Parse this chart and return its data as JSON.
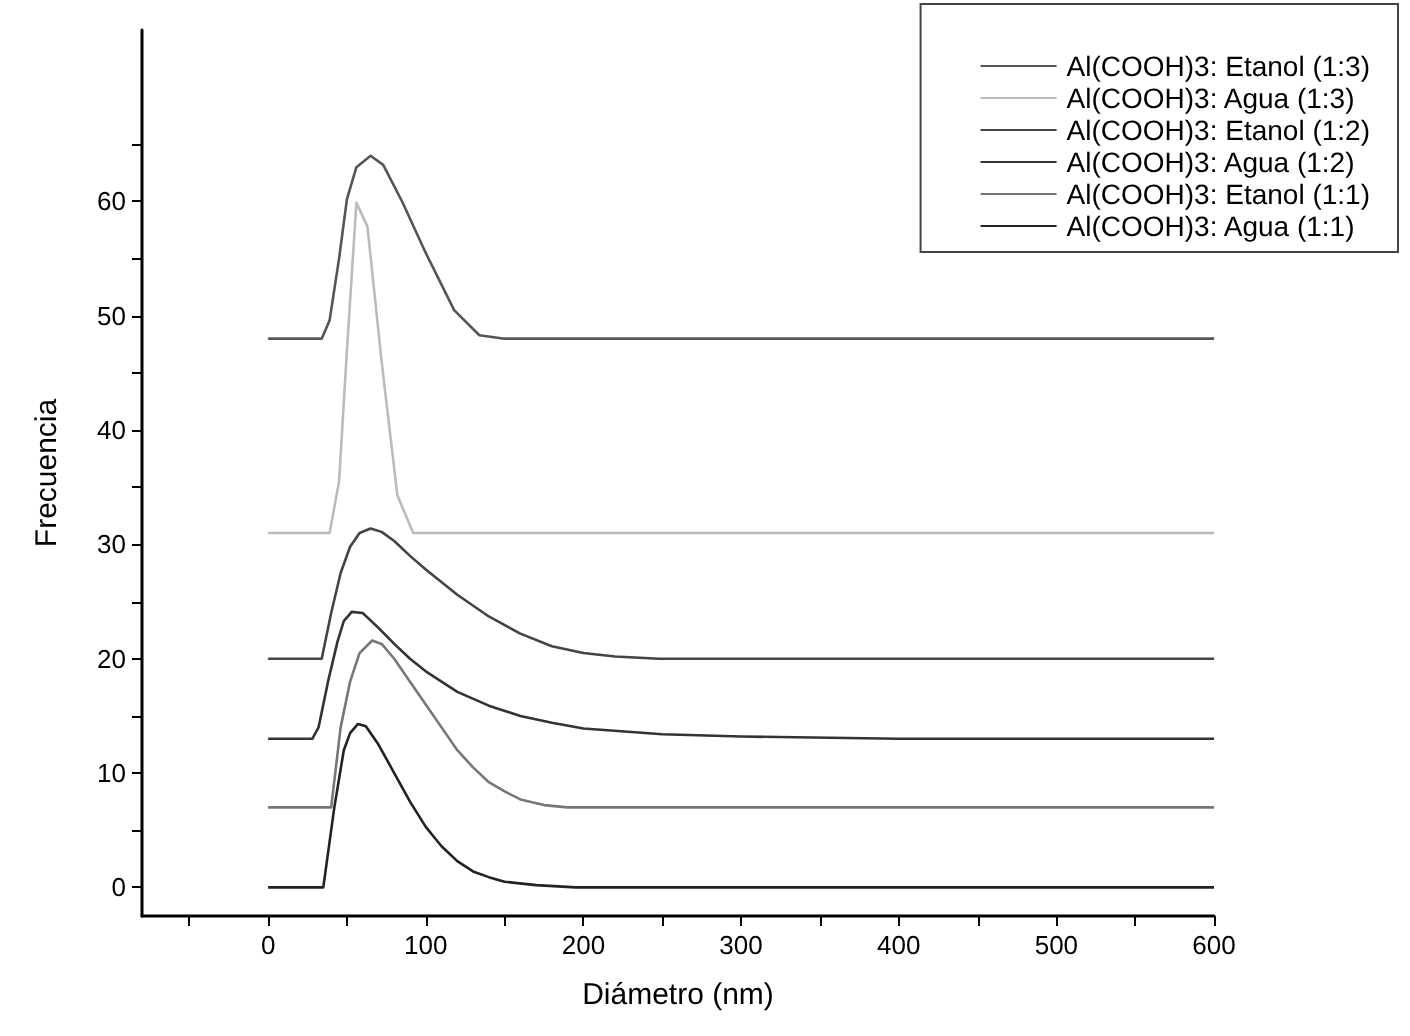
{
  "chart_data": {
    "type": "line",
    "xlabel": "Diámetro (nm)",
    "ylabel": "Frecuencia",
    "xlim": [
      -80,
      600
    ],
    "ylim": [
      -2.5,
      75
    ],
    "xticks": [
      {
        "value": -50,
        "label": null
      },
      0,
      {
        "value": 50,
        "label": null
      },
      100,
      {
        "value": 150,
        "label": null
      },
      200,
      {
        "value": 250,
        "label": null
      },
      300,
      {
        "value": 350,
        "label": null
      },
      400,
      {
        "value": 450,
        "label": null
      },
      500,
      {
        "value": 550,
        "label": null
      },
      600
    ],
    "yticks": [
      0,
      {
        "value": 5,
        "label": null
      },
      10,
      {
        "value": 15,
        "label": null
      },
      20,
      {
        "value": 25,
        "label": null
      },
      30,
      {
        "value": 35,
        "label": null
      },
      40,
      {
        "value": 45,
        "label": null
      },
      50,
      {
        "value": 55,
        "label": null
      },
      60,
      {
        "value": 65,
        "label": null
      }
    ],
    "grid": false,
    "legend": "top right",
    "marker": "none",
    "line_style": "solid",
    "series": [
      {
        "name": "Al(COOH)3: Etanol (1:3)",
        "color": "#555555",
        "x": [
          0,
          34,
          39,
          45,
          50,
          56,
          65,
          73,
          85,
          100,
          118,
          134,
          150,
          600
        ],
        "values": [
          48,
          48,
          49.6,
          55,
          60.2,
          63,
          64,
          63.2,
          60,
          55.5,
          50.5,
          48.3,
          48,
          48
        ]
      },
      {
        "name": "Al(COOH)3: Agua (1:3)",
        "color": "#bbbbbb",
        "x": [
          0,
          39,
          45,
          50,
          56,
          63,
          72,
          82,
          92,
          600
        ],
        "values": [
          31,
          31,
          35.5,
          47,
          59.9,
          57.8,
          46,
          34.3,
          31,
          31
        ]
      },
      {
        "name": "Al(COOH)3: Etanol (1:2)",
        "color": "#444444",
        "x": [
          0,
          34,
          40,
          46,
          52,
          58,
          65,
          72,
          80,
          90,
          100,
          120,
          140,
          160,
          180,
          200,
          220,
          248,
          600
        ],
        "values": [
          20,
          20,
          24,
          27.5,
          29.8,
          31,
          31.4,
          31.1,
          30.3,
          29,
          27.8,
          25.6,
          23.7,
          22.2,
          21.1,
          20.5,
          20.2,
          20,
          20
        ]
      },
      {
        "name": "Al(COOH)3: Agua (1:2)",
        "color": "#333333",
        "x": [
          0,
          28,
          32,
          38,
          44,
          48,
          53,
          60,
          70,
          80,
          90,
          100,
          120,
          140,
          160,
          180,
          200,
          250,
          300,
          400,
          600
        ],
        "values": [
          13,
          13,
          14,
          18,
          21.5,
          23.3,
          24.1,
          24,
          22.7,
          21.3,
          20,
          18.9,
          17.1,
          15.9,
          15,
          14.4,
          13.9,
          13.4,
          13.2,
          13,
          13
        ]
      },
      {
        "name": "Al(COOH)3: Etanol (1:1)",
        "color": "#777777",
        "x": [
          0,
          40,
          46,
          52,
          58,
          66,
          72,
          80,
          90,
          100,
          110,
          120,
          130,
          140,
          150,
          160,
          175,
          190,
          600
        ],
        "values": [
          7,
          7,
          14,
          18,
          20.5,
          21.6,
          21.3,
          20,
          18,
          16,
          14,
          12,
          10.5,
          9.2,
          8.4,
          7.7,
          7.2,
          7,
          7
        ]
      },
      {
        "name": "Al(COOH)3: Agua (1:1)",
        "color": "#222222",
        "x": [
          0,
          35,
          42,
          48,
          52,
          57,
          62,
          70,
          80,
          90,
          100,
          110,
          120,
          130,
          140,
          150,
          170,
          195,
          600
        ],
        "values": [
          0,
          0,
          7,
          12,
          13.5,
          14.3,
          14.1,
          12.5,
          10,
          7.5,
          5.3,
          3.6,
          2.3,
          1.4,
          0.9,
          0.5,
          0.2,
          0,
          0
        ]
      }
    ]
  }
}
